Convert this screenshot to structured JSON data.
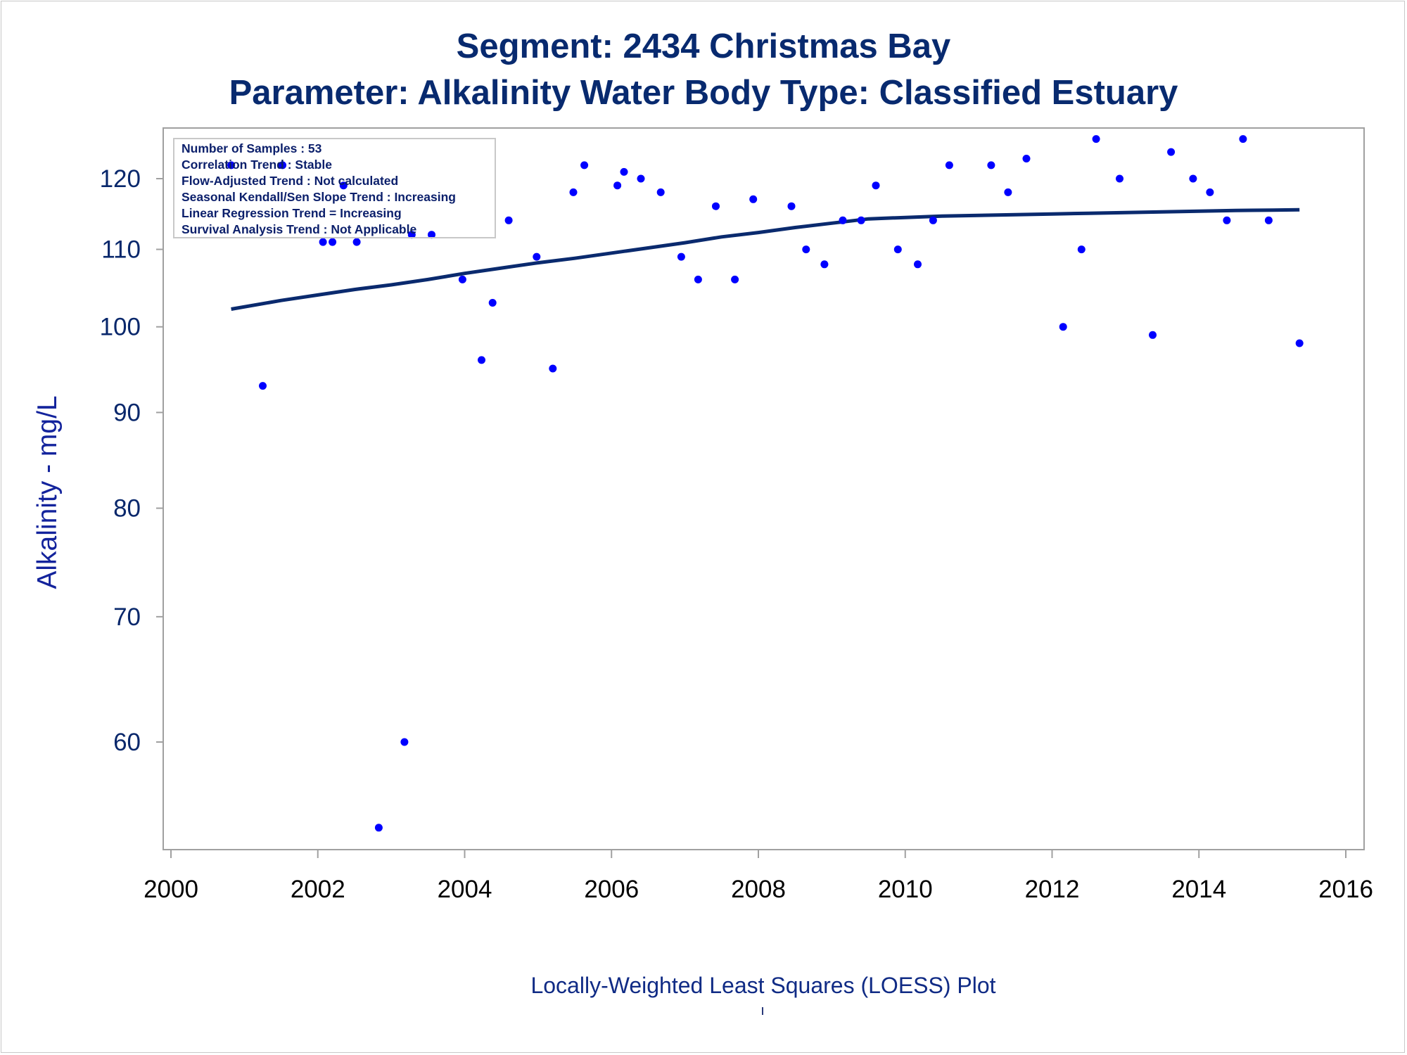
{
  "title_line1": "Segment: 2434  Christmas Bay",
  "title_line2": "Parameter: Alkalinity   Water Body Type: Classified Estuary",
  "footnote": "Locally-Weighted Least Squares (LOESS) Plot",
  "footnote_mark": "'",
  "colors": {
    "text": "#082a6f",
    "points": "#0000ff",
    "loess_line": "#0a2a6e",
    "frame": "#a0a0a0"
  },
  "chart_data": {
    "type": "scatter",
    "title": "",
    "xlabel": "",
    "ylabel": "Alkalinity - mg/L",
    "y_scale": "log",
    "xlim": [
      2000,
      2016
    ],
    "ylim": [
      52,
      128
    ],
    "x_ticks": [
      2000,
      2002,
      2004,
      2006,
      2008,
      2010,
      2012,
      2014,
      2016
    ],
    "y_ticks": [
      60,
      70,
      80,
      90,
      100,
      110,
      120
    ],
    "grid": false,
    "annotations": [
      "Number of Samples : 53",
      "Correlation Trend : Stable",
      "Flow-Adjusted Trend : Not calculated",
      "Seasonal Kendall/Sen Slope Trend : Increasing",
      "Linear Regression Trend = Increasing",
      "Survival Analysis Trend : Not Applicable"
    ],
    "series": [
      {
        "kind": "points",
        "points": [
          [
            2000.82,
            122
          ],
          [
            2001.25,
            93
          ],
          [
            2001.52,
            122
          ],
          [
            2002.07,
            111
          ],
          [
            2002.2,
            111
          ],
          [
            2002.35,
            119
          ],
          [
            2002.53,
            111
          ],
          [
            2002.83,
            54
          ],
          [
            2003.18,
            60
          ],
          [
            2003.28,
            112
          ],
          [
            2003.55,
            112
          ],
          [
            2003.97,
            106
          ],
          [
            2004.23,
            96
          ],
          [
            2004.38,
            103
          ],
          [
            2004.6,
            114
          ],
          [
            2004.98,
            109
          ],
          [
            2005.2,
            95
          ],
          [
            2005.48,
            118
          ],
          [
            2005.63,
            122
          ],
          [
            2006.08,
            119
          ],
          [
            2006.17,
            121
          ],
          [
            2006.4,
            120
          ],
          [
            2006.67,
            118
          ],
          [
            2006.95,
            109
          ],
          [
            2007.18,
            106
          ],
          [
            2007.42,
            116
          ],
          [
            2007.68,
            106
          ],
          [
            2007.93,
            117
          ],
          [
            2008.45,
            116
          ],
          [
            2008.65,
            110
          ],
          [
            2008.9,
            108
          ],
          [
            2009.15,
            114
          ],
          [
            2009.4,
            114
          ],
          [
            2009.6,
            119
          ],
          [
            2009.9,
            110
          ],
          [
            2010.17,
            108
          ],
          [
            2010.38,
            114
          ],
          [
            2010.6,
            122
          ],
          [
            2011.17,
            122
          ],
          [
            2011.4,
            118
          ],
          [
            2011.65,
            123
          ],
          [
            2012.15,
            100
          ],
          [
            2012.4,
            110
          ],
          [
            2012.6,
            126
          ],
          [
            2012.92,
            120
          ],
          [
            2013.37,
            99
          ],
          [
            2013.62,
            124
          ],
          [
            2013.92,
            120
          ],
          [
            2014.15,
            118
          ],
          [
            2014.38,
            114
          ],
          [
            2014.6,
            126
          ],
          [
            2014.95,
            114
          ],
          [
            2015.37,
            98
          ]
        ]
      },
      {
        "kind": "loess",
        "points": [
          [
            2000.82,
            102.2
          ],
          [
            2001.5,
            103.3
          ],
          [
            2002.0,
            104.0
          ],
          [
            2002.5,
            104.7
          ],
          [
            2003.0,
            105.3
          ],
          [
            2003.5,
            106.0
          ],
          [
            2004.0,
            106.8
          ],
          [
            2004.5,
            107.5
          ],
          [
            2005.0,
            108.2
          ],
          [
            2005.5,
            108.8
          ],
          [
            2006.0,
            109.5
          ],
          [
            2006.5,
            110.2
          ],
          [
            2007.0,
            110.9
          ],
          [
            2007.5,
            111.7
          ],
          [
            2008.0,
            112.3
          ],
          [
            2008.5,
            113.0
          ],
          [
            2009.0,
            113.6
          ],
          [
            2009.5,
            114.2
          ],
          [
            2010.0,
            114.4
          ],
          [
            2010.5,
            114.6
          ],
          [
            2011.0,
            114.7
          ],
          [
            2011.5,
            114.8
          ],
          [
            2012.0,
            114.9
          ],
          [
            2012.5,
            115.0
          ],
          [
            2013.0,
            115.1
          ],
          [
            2013.5,
            115.2
          ],
          [
            2014.0,
            115.3
          ],
          [
            2014.5,
            115.4
          ],
          [
            2015.0,
            115.45
          ],
          [
            2015.37,
            115.5
          ]
        ]
      }
    ]
  }
}
